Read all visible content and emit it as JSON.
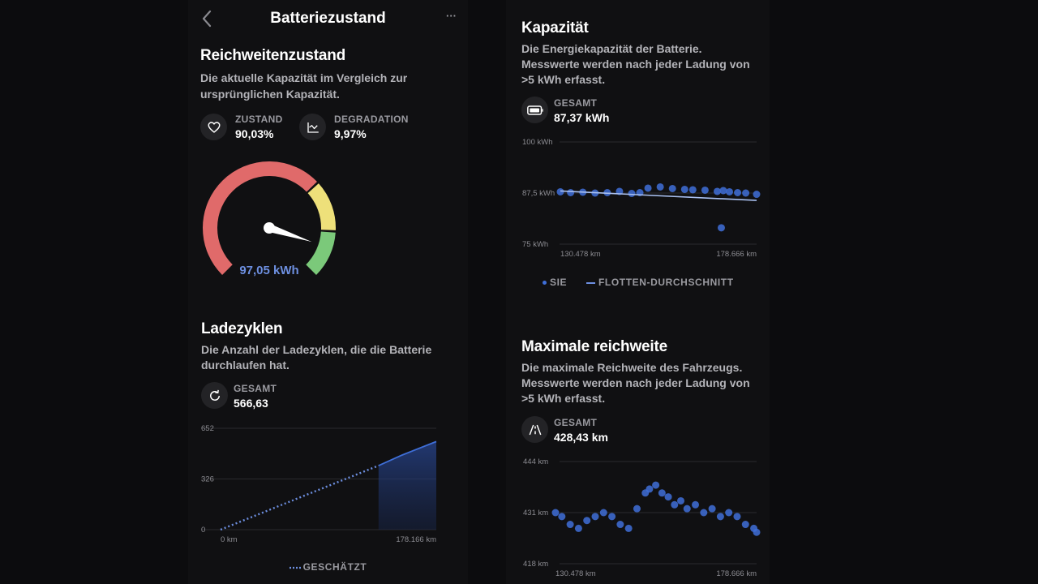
{
  "header": {
    "title": "Batteriezustand",
    "back_icon": "chevron-left-icon",
    "more_label": "···"
  },
  "range_state": {
    "title": "Reichweitenzustand",
    "description_line1": "Die aktuelle Kapazität im Vergleich zur",
    "description_line2": "ursprünglichen Kapazität.",
    "health_label": "ZUSTAND",
    "health_value": "90,03%",
    "health_icon": "heart-icon",
    "degradation_label": "DEGRADATION",
    "degradation_value": "9,97%",
    "degradation_icon": "trend-chart-icon",
    "gauge_value": "97,05 kWh",
    "gauge_fraction": 0.9003,
    "gauge_colors": {
      "red": "#e06a6a",
      "yellow": "#eee07a",
      "green": "#7bc97a",
      "value_text": "#6d8fe0"
    }
  },
  "charge_cycles": {
    "title": "Ladezyklen",
    "description_line1": "Die Anzahl der Ladezyklen, die die Batterie",
    "description_line2": "durchlaufen hat.",
    "total_label": "GESAMT",
    "total_value": "566,63",
    "icon": "refresh-icon",
    "legend_estimated": "GESCHÄTZT"
  },
  "capacity": {
    "title": "Kapazität",
    "description_line1": "Die Energiekapazität der Batterie.",
    "description_line2": "Messwerte werden nach jeder Ladung von",
    "description_line3": ">5 kWh erfasst.",
    "total_label": "GESAMT",
    "total_value": "87,37 kWh",
    "icon": "battery-icon",
    "legend_you": "SIE",
    "legend_fleet": "FLOTTEN-DURCHSCHNITT"
  },
  "max_range": {
    "title": "Maximale reichweite",
    "description_line1": "Die maximale Reichweite des Fahrzeugs.",
    "description_line2": "Messwerte werden nach jeder Ladung von",
    "description_line3": ">5 kWh erfasst.",
    "total_label": "GESAMT",
    "total_value": "428,43 km",
    "icon": "road-icon"
  },
  "chart_data": [
    {
      "type": "line",
      "title": "Ladezyklen",
      "x_tick_labels": [
        "0 km",
        "178.166 km"
      ],
      "y_tick_labels": [
        "652",
        "326",
        "0"
      ],
      "ylim": [
        0,
        652
      ],
      "series": [
        {
          "name": "GESCHÄTZT",
          "style": "dotted",
          "x": [
            0,
            130478
          ],
          "y": [
            0,
            412
          ]
        },
        {
          "style": "solid-area",
          "x": [
            130478,
            150000,
            178166
          ],
          "y": [
            412,
            480,
            566.63
          ]
        }
      ],
      "color": "#3f6fd8"
    },
    {
      "type": "scatter",
      "title": "Kapazität",
      "x_tick_labels": [
        "130.478 km",
        "178.666 km"
      ],
      "y_tick_labels": [
        "100 kWh",
        "87,5 kWh",
        "75 kWh"
      ],
      "xlim": [
        130478,
        178666
      ],
      "ylim": [
        75,
        100
      ],
      "series": [
        {
          "name": "SIE",
          "x": [
            130478,
            133000,
            136000,
            139000,
            142000,
            145000,
            148000,
            150000,
            152000,
            155000,
            158000,
            161000,
            163000,
            166000,
            169000,
            170500,
            172000,
            174000,
            176000,
            178666,
            170000
          ],
          "y": [
            87.8,
            87.6,
            87.7,
            87.5,
            87.6,
            87.9,
            87.4,
            87.6,
            88.7,
            89.0,
            88.6,
            88.4,
            88.3,
            88.2,
            87.9,
            88.1,
            87.8,
            87.6,
            87.5,
            87.2,
            79.0
          ]
        },
        {
          "name": "FLOTTEN-DURCHSCHNITT",
          "x": [
            130478,
            178666
          ],
          "y": [
            88.0,
            85.7
          ]
        }
      ],
      "color": "#3f6fd8"
    },
    {
      "type": "scatter",
      "title": "Maximale reichweite",
      "x_tick_labels": [
        "130.478 km",
        "178.666 km"
      ],
      "y_tick_labels": [
        "444 km",
        "431 km",
        "418 km"
      ],
      "xlim": [
        130478,
        178666
      ],
      "ylim": [
        418,
        444
      ],
      "series": [
        {
          "name": "SIE",
          "x": [
            130478,
            132000,
            134000,
            136000,
            138000,
            140000,
            142000,
            144000,
            146000,
            148000,
            150000,
            152000,
            153000,
            154500,
            156000,
            157500,
            159000,
            160500,
            162000,
            164000,
            166000,
            168000,
            170000,
            172000,
            174000,
            176000,
            178000,
            178666
          ],
          "y": [
            431,
            430,
            428,
            427,
            429,
            430,
            431,
            430,
            428,
            427,
            432,
            436,
            437,
            438,
            436,
            435,
            433,
            434,
            432,
            433,
            431,
            432,
            430,
            431,
            430,
            428,
            427,
            426
          ]
        }
      ],
      "color": "#3f6fd8"
    }
  ]
}
